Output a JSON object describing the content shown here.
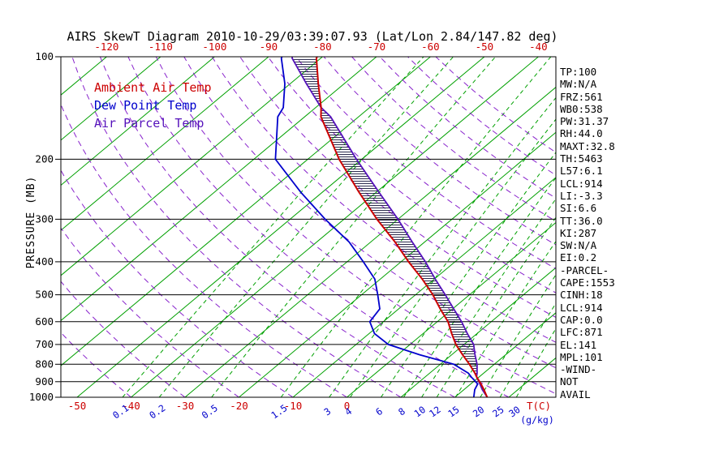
{
  "title": "AIRS SkewT Diagram 2010-10-29/03:39:07.93 (Lat/Lon 2.84/147.82 deg)",
  "y_axis_label": "PRESSURE (MB)",
  "legend": [
    {
      "label": "Ambient Air Temp",
      "color": "#cc0000"
    },
    {
      "label": "Dew Point Temp",
      "color": "#0000cc"
    },
    {
      "label": "Air Parcel Temp",
      "color": "#5511bb"
    }
  ],
  "stats_panel": {
    "lines": [
      "TP:100",
      "MW:N/A",
      "FRZ:561",
      "WB0:538",
      "PW:31.37",
      "RH:44.0",
      "MAXT:32.8",
      "TH:5463",
      "L57:6.1",
      "LCL:914",
      "LI:-3.3",
      "SI:6.6",
      "TT:36.0",
      "KI:287",
      "SW:N/A",
      "EI:0.2",
      "-PARCEL-",
      "CAPE:1553",
      "CINH:18",
      "LCL:914",
      "CAP:0.0",
      "LFC:871",
      "EL:141",
      "MPL:101",
      "-WIND-",
      "NOT",
      "AVAIL"
    ]
  },
  "chart_data": {
    "type": "line",
    "subtype": "skew-t-log-p",
    "title": "AIRS SkewT Diagram 2010-10-29/03:39:07.93 (Lat/Lon 2.84/147.82 deg)",
    "xlabel": "T(C)",
    "ylabel": "PRESSURE (MB)",
    "x_unit_label": "T(C)",
    "mixing_ratio_unit_label": "(g/kg)",
    "pressure_ticks_mb": [
      100,
      200,
      300,
      400,
      500,
      600,
      700,
      800,
      900,
      1000
    ],
    "temp_ticks_top_c": [
      -120,
      -110,
      -100,
      -90,
      -80,
      -70,
      -60,
      -50,
      -40
    ],
    "temp_ticks_bottom_c": [
      -50,
      -40,
      -30,
      -20,
      -10,
      0
    ],
    "mixing_ratio_ticks_gkg": [
      0.1,
      0.2,
      0.5,
      1.5,
      3,
      4,
      6,
      8,
      10,
      12,
      15,
      20,
      25,
      30
    ],
    "isotherms_c": {
      "min": -160,
      "max": 40,
      "step": 10
    },
    "dry_adiabats_c": {
      "min": -40,
      "max": 140,
      "step": 10
    },
    "axis": {
      "pressure_range_mb": [
        100,
        1000
      ],
      "log_pressure": true,
      "grid": true,
      "legend_position": "top-left-inside"
    },
    "pressure_levels_mb": [
      1000,
      950,
      914,
      871,
      850,
      800,
      750,
      700,
      650,
      600,
      550,
      500,
      450,
      400,
      350,
      300,
      250,
      200,
      150,
      141,
      120,
      101,
      100
    ],
    "series": [
      {
        "name": "Ambient Air Temp",
        "color": "#cc0000",
        "temp_c": [
          26.0,
          23.7,
          21.9,
          19.5,
          18.4,
          15.4,
          12.0,
          8.5,
          5.3,
          2.0,
          -2.3,
          -6.8,
          -12.2,
          -18.6,
          -25.5,
          -33.9,
          -43.2,
          -54.2,
          -67.0,
          -69.0,
          -74.8,
          -80.8,
          -81.0
        ]
      },
      {
        "name": "Dew Point Temp",
        "color": "#0000cc",
        "temp_c": [
          23.5,
          22.0,
          21.3,
          18.5,
          17.2,
          12.5,
          4.0,
          -4.0,
          -9.0,
          -12.5,
          -13.5,
          -17.0,
          -21.0,
          -27.0,
          -34.0,
          -43.5,
          -54.0,
          -66.0,
          -75.0,
          -76.0,
          -81.0,
          -87.3,
          -87.5
        ]
      },
      {
        "name": "Air Parcel Temp",
        "color": "#5511bb",
        "temp_c": [
          26.0,
          23.4,
          21.7,
          19.5,
          18.8,
          16.8,
          14.3,
          11.8,
          8.2,
          4.5,
          0.2,
          -4.5,
          -9.8,
          -15.5,
          -22.3,
          -30.0,
          -39.5,
          -51.0,
          -65.2,
          -69.0,
          -77.0,
          -85.3,
          -85.6
        ]
      }
    ],
    "cape_hatch": {
      "from_mb": 871,
      "to_mb": 101
    },
    "colors": {
      "isotherm": "#00a000",
      "dry_adiabat": "#8822cc",
      "hatch": "#15153a",
      "frame": "#000000",
      "pressure_line": "#000000",
      "temp_tick": "#cc0000",
      "mixing_tick": "#0000cc",
      "pressure_tick": "#000000"
    }
  }
}
